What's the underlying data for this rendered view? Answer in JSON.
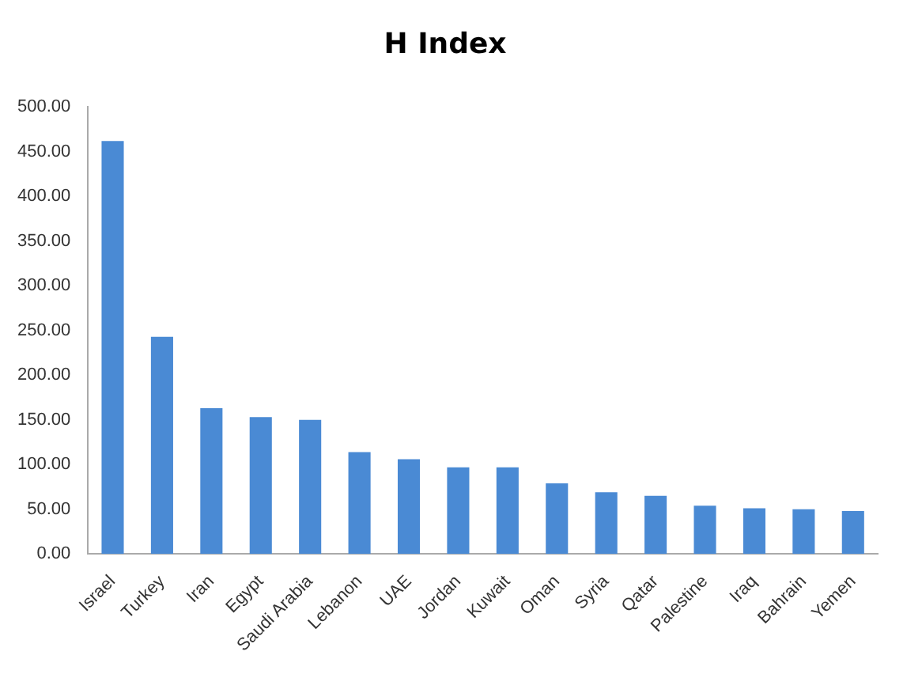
{
  "chart_data": {
    "type": "bar",
    "title": "H Index",
    "categories": [
      "Israel",
      "Turkey",
      "Iran",
      "Egypt",
      "Saudi Arabia",
      "Lebanon",
      "UAE",
      "Jordan",
      "Kuwait",
      "Oman",
      "Syria",
      "Qatar",
      "Palestine",
      "Iraq",
      "Bahrain",
      "Yemen"
    ],
    "values": [
      462,
      243,
      163,
      153,
      150,
      114,
      106,
      97,
      97,
      79,
      69,
      65,
      54,
      51,
      50,
      48
    ],
    "color": "#4a8ad4",
    "ylim": [
      0,
      500
    ],
    "yticks": [
      {
        "value": 0,
        "label": "0.00"
      },
      {
        "value": 50,
        "label": "50.00"
      },
      {
        "value": 100,
        "label": "100.00"
      },
      {
        "value": 150,
        "label": "150.00"
      },
      {
        "value": 200,
        "label": "200.00"
      },
      {
        "value": 250,
        "label": "250.00"
      },
      {
        "value": 300,
        "label": "300.00"
      },
      {
        "value": 350,
        "label": "350.00"
      },
      {
        "value": 400,
        "label": "400.00"
      },
      {
        "value": 450,
        "label": "450.00"
      },
      {
        "value": 500,
        "label": "500.00"
      }
    ],
    "grid": false,
    "legend": false
  }
}
